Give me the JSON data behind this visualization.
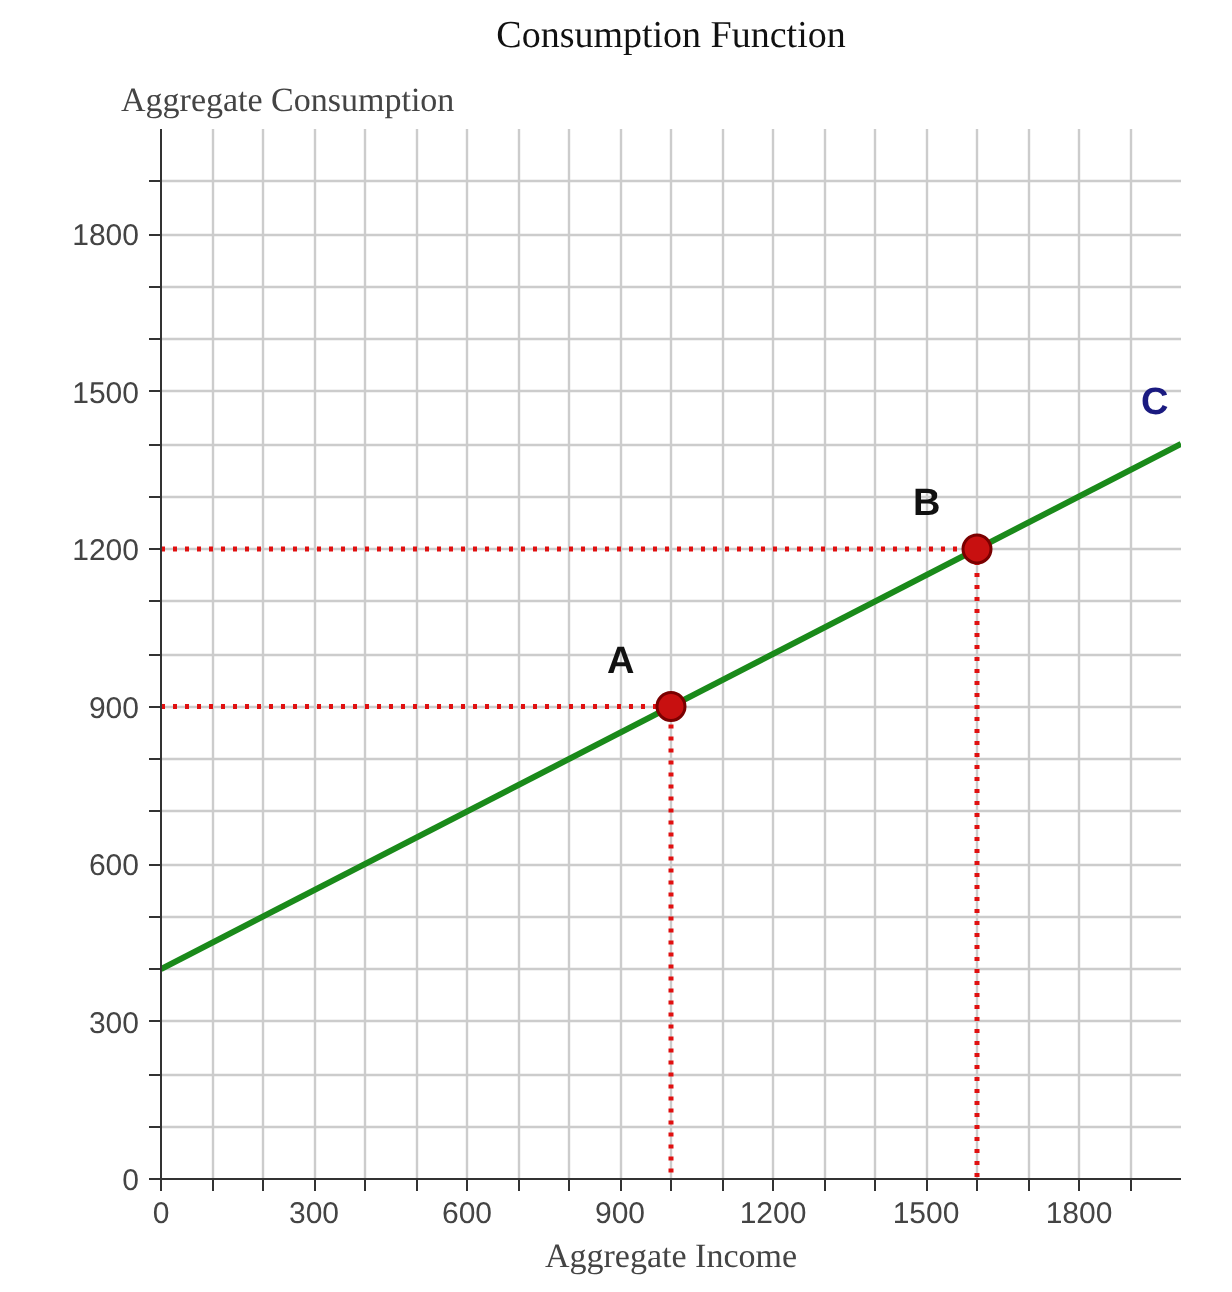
{
  "chart_data": {
    "type": "line",
    "title": "Consumption Function",
    "ylabel": "Aggregate Consumption",
    "xlabel": "Aggregate Income",
    "xlim": [
      0,
      2000
    ],
    "ylim": [
      0,
      2000
    ],
    "xticks": [
      0,
      {
        "value": 100,
        "label": null
      },
      {
        "value": 200,
        "label": null
      },
      300,
      {
        "value": 400,
        "label": null
      },
      {
        "value": 500,
        "label": null
      },
      600,
      {
        "value": 700,
        "label": null
      },
      {
        "value": 800,
        "label": null
      },
      900,
      {
        "value": 1000,
        "label": null
      },
      {
        "value": 1100,
        "label": null
      },
      1200,
      {
        "value": 1300,
        "label": null
      },
      {
        "value": 1400,
        "label": null
      },
      1500,
      {
        "value": 1600,
        "label": null
      },
      {
        "value": 1700,
        "label": null
      },
      1800,
      {
        "value": 1900,
        "label": null
      }
    ],
    "yticks": [
      0,
      {
        "value": 100,
        "label": null
      },
      {
        "value": 200,
        "label": null
      },
      300,
      {
        "value": 400,
        "label": null
      },
      {
        "value": 500,
        "label": null
      },
      600,
      {
        "value": 700,
        "label": null
      },
      {
        "value": 800,
        "label": null
      },
      900,
      {
        "value": 1000,
        "label": null
      },
      {
        "value": 1100,
        "label": null
      },
      1200,
      {
        "value": 1300,
        "label": null
      },
      {
        "value": 1400,
        "label": null
      },
      1500,
      {
        "value": 1600,
        "label": null
      },
      {
        "value": 1700,
        "label": null
      },
      1800,
      {
        "value": 1900,
        "label": null
      }
    ],
    "grid": true,
    "series": [
      {
        "x": [
          0,
          1000,
          1000
        ],
        "values": [
          900,
          900,
          0
        ],
        "color": "#e01010",
        "line_style": "dotted"
      },
      {
        "x": [
          0,
          1600,
          1600
        ],
        "values": [
          1200,
          1200,
          0
        ],
        "color": "#e01010",
        "line_style": "dotted"
      },
      {
        "name": "C",
        "x": [
          0,
          2000
        ],
        "values": [
          400,
          1400
        ],
        "color": "#1a8a1a",
        "line_style": "solid"
      },
      {
        "type": "scatter",
        "x": [
          1000,
          1600
        ],
        "values": [
          900,
          1200
        ],
        "color": "#c81010",
        "marker": "circle"
      }
    ],
    "annotations": [
      {
        "text": "A",
        "x": 1000,
        "y": 900
      },
      {
        "text": "B",
        "x": 1600,
        "y": 1200
      }
    ]
  }
}
